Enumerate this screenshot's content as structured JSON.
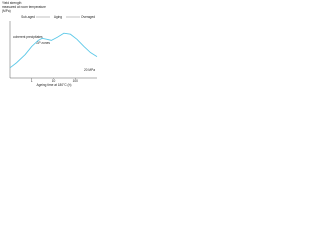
{
  "chart_data": {
    "type": "line",
    "title_lines": [
      "Yield strength",
      "measured at room temperature",
      "(MPa)"
    ],
    "regions": [
      "Sub-aged",
      "Aging",
      "Overaged"
    ],
    "annotations": [
      "GP zones",
      "coherent precipitates"
    ],
    "scale_note": "20 MPa",
    "xlabel": "Ageing time at 180°C (h)",
    "x": [
      0.1,
      0.2,
      0.5,
      1,
      2,
      3,
      5,
      8,
      15,
      30,
      60,
      120,
      250,
      500,
      1000
    ],
    "series": [
      {
        "name": "Yield strength",
        "color": "#5bc8e8",
        "values": [
          150,
          175,
          215,
          255,
          285,
          295,
          290,
          285,
          300,
          320,
          315,
          290,
          255,
          225,
          205
        ]
      }
    ],
    "xscale": "log",
    "xlim": [
      0.1,
      1000
    ],
    "xticks": [
      1,
      10,
      100
    ],
    "ylim": [
      100,
      380
    ]
  }
}
